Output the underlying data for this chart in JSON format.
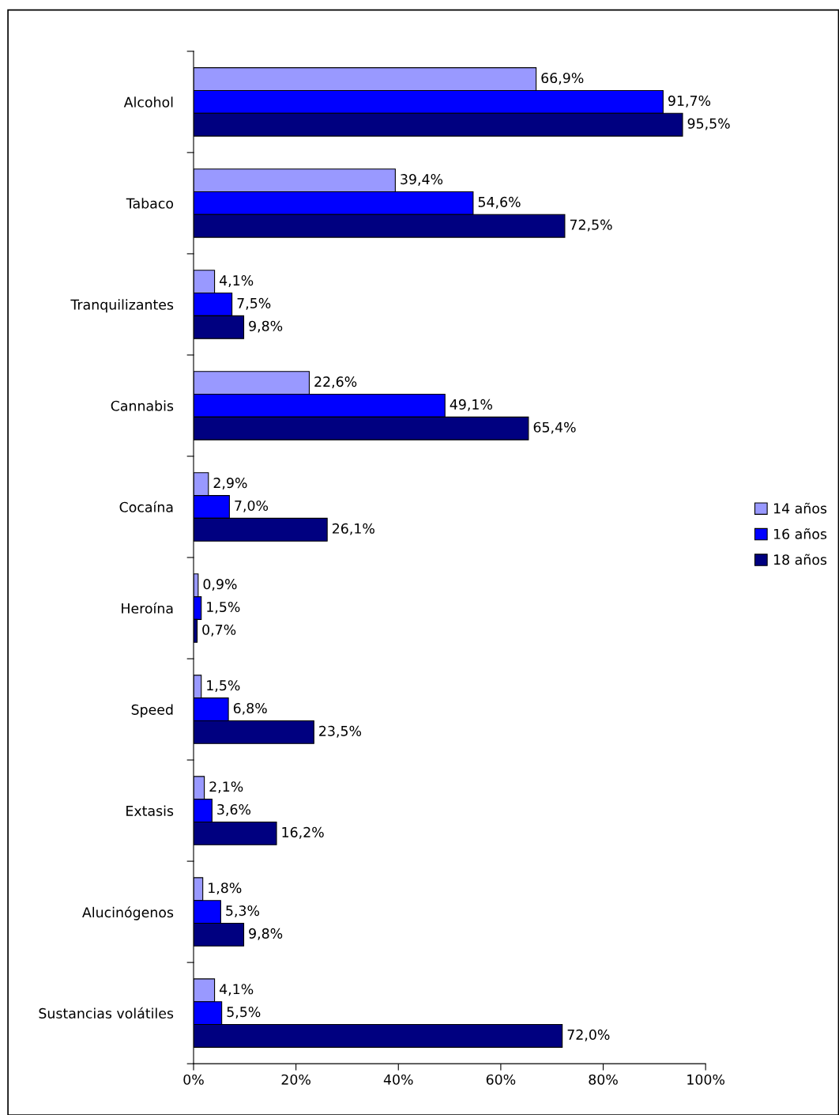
{
  "chart_data": {
    "type": "bar",
    "orientation": "horizontal",
    "categories": [
      "Alcohol",
      "Tabaco",
      "Tranquilizantes",
      "Cannabis",
      "Cocaína",
      "Heroína",
      "Speed",
      "Extasis",
      "Alucinógenos",
      "Sustancias volátiles"
    ],
    "series": [
      {
        "name": "14 años",
        "color": "#9999ff",
        "values": [
          66.9,
          39.4,
          4.1,
          22.6,
          2.9,
          0.9,
          1.5,
          2.1,
          1.8,
          4.1
        ],
        "value_labels": [
          "66,9%",
          "39,4%",
          "4,1%",
          "22,6%",
          "2,9%",
          "0,9%",
          "1,5%",
          "2,1%",
          "1,8%",
          "4,1%"
        ]
      },
      {
        "name": "16 años",
        "color": "#0000ff",
        "values": [
          91.7,
          54.6,
          7.5,
          49.1,
          7.0,
          1.5,
          6.8,
          3.6,
          5.3,
          5.5
        ],
        "value_labels": [
          "91,7%",
          "54,6%",
          "7,5%",
          "49,1%",
          "7,0%",
          "1,5%",
          "6,8%",
          "3,6%",
          "5,3%",
          "5,5%"
        ]
      },
      {
        "name": "18 años",
        "color": "#000080",
        "values": [
          95.5,
          72.5,
          9.8,
          65.4,
          26.1,
          0.7,
          23.5,
          16.2,
          9.8,
          72.0
        ],
        "value_labels": [
          "95,5%",
          "72,5%",
          "9,8%",
          "65,4%",
          "26,1%",
          "0,7%",
          "23,5%",
          "16,2%",
          "9,8%",
          "72,0%"
        ]
      }
    ],
    "xlim": [
      0,
      100
    ],
    "xticks": [
      {
        "value": 0,
        "label": "0%"
      },
      {
        "value": 20,
        "label": "20%"
      },
      {
        "value": 40,
        "label": "40%"
      },
      {
        "value": 60,
        "label": "60%"
      },
      {
        "value": 80,
        "label": "80%"
      },
      {
        "value": 100,
        "label": "100%"
      }
    ],
    "grid": false,
    "legend": "right"
  }
}
